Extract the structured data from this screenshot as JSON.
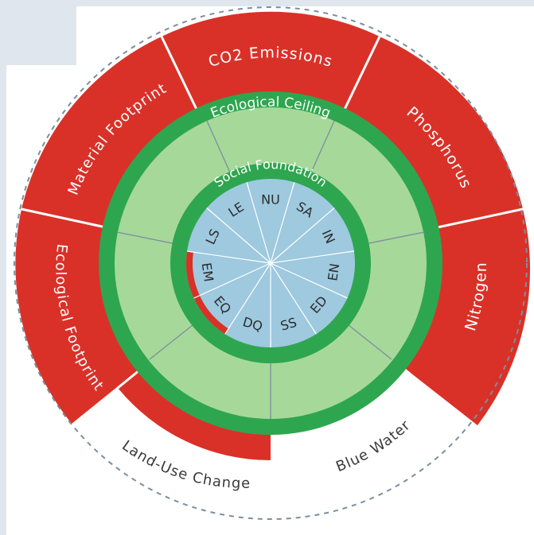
{
  "colors": {
    "overshoot": "#d93128",
    "ceiling_ring": "#2ea64f",
    "safe_space": "#a6d89a",
    "core": "#9ec9df",
    "outline": "#7b8f9c",
    "label_light": "#ffffff",
    "label_dark": "#3a3a3a"
  },
  "diagram": {
    "rings": {
      "ceiling": "Ecological Ceiling",
      "foundation": "Social Foundation"
    },
    "planetary_boundaries": [
      {
        "label": "CO2 Emissions",
        "status": "overshoot"
      },
      {
        "label": "Phosphorus",
        "status": "overshoot"
      },
      {
        "label": "Nitrogen",
        "status": "overshoot"
      },
      {
        "label": "Blue Water",
        "status": "within"
      },
      {
        "label": "Land-Use Change",
        "status": "overshoot"
      },
      {
        "label": "Ecological Footprint",
        "status": "overshoot"
      },
      {
        "label": "Material Footprint",
        "status": "overshoot"
      }
    ],
    "social_indicators": [
      {
        "label": "NU",
        "shortfall": false
      },
      {
        "label": "SA",
        "shortfall": false
      },
      {
        "label": "IN",
        "shortfall": false
      },
      {
        "label": "EN",
        "shortfall": false
      },
      {
        "label": "ED",
        "shortfall": false
      },
      {
        "label": "SS",
        "shortfall": false
      },
      {
        "label": "DQ",
        "shortfall": false
      },
      {
        "label": "EQ",
        "shortfall": true
      },
      {
        "label": "EM",
        "shortfall": true
      },
      {
        "label": "LS",
        "shortfall": false
      },
      {
        "label": "LE",
        "shortfall": false
      }
    ]
  }
}
